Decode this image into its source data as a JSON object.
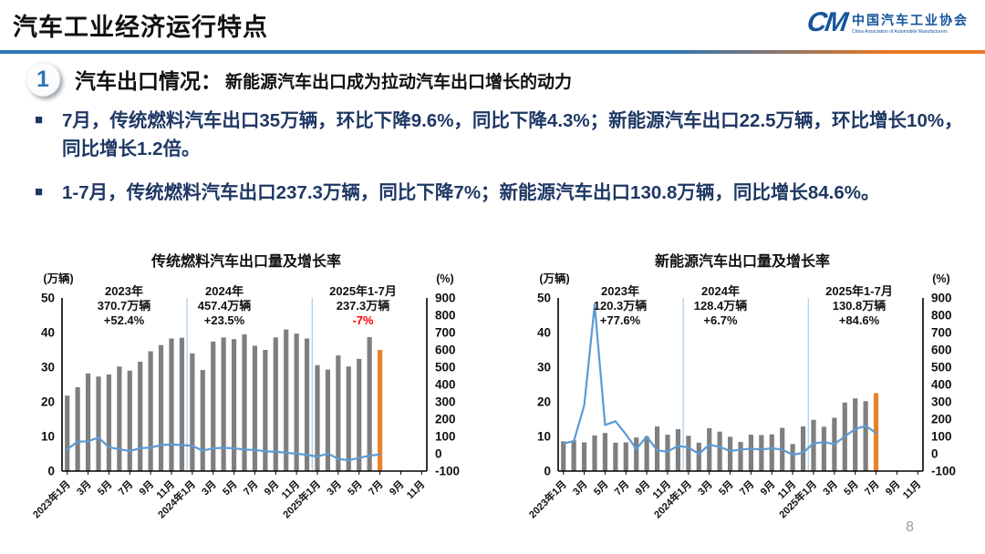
{
  "header": {
    "title": "汽车工业经济运行特点",
    "logo": {
      "mark": "CM",
      "name_cn": "中国汽车工业协会",
      "name_en": "China Association of Automobile Manufacturers"
    }
  },
  "section": {
    "number": "1",
    "heading": "汽车出口情况：",
    "subheading": "新能源汽车出口成为拉动汽车出口增长的动力"
  },
  "bullets": [
    "7月，传统燃料汽车出口35万辆，环比下降9.6%，同比下降4.3%；新能源汽车出口22.5万辆，环比增长10%，同比增长1.2倍。",
    "1-7月，传统燃料汽车出口237.3万辆，同比下降7%；新能源汽车出口130.8万辆，同比增长84.6%。"
  ],
  "page_number": "8",
  "colors": {
    "bar": "#7F7F7F",
    "bar_highlight": "#E8832C",
    "line": "#5B9BD5",
    "separator": "#A9CCE8",
    "axis": "#000000",
    "annotation_red": "#FF0000",
    "text_navy": "#1F3864",
    "rule_blue": "#2E74B5",
    "rule_orange": "#E87722",
    "logo_blue": "#15549C"
  },
  "chart_data": [
    {
      "type": "bar",
      "title": "传统燃料汽车出口量及增长率",
      "left_axis_label": "(万辆)",
      "right_axis_label": "(%)",
      "left_axis_ticks": [
        0,
        10,
        20,
        30,
        40,
        50
      ],
      "left_axis_range": [
        0,
        50
      ],
      "right_axis_ticks": [
        -100,
        0,
        100,
        200,
        300,
        400,
        500,
        600,
        700,
        800,
        900
      ],
      "right_axis_range": [
        -100,
        900
      ],
      "grid": false,
      "legend": "none",
      "categories": [
        "2023-01",
        "2023-02",
        "2023-03",
        "2023-04",
        "2023-05",
        "2023-06",
        "2023-07",
        "2023-08",
        "2023-09",
        "2023-10",
        "2023-11",
        "2023-12",
        "2024-01",
        "2024-02",
        "2024-03",
        "2024-04",
        "2024-05",
        "2024-06",
        "2024-07",
        "2024-08",
        "2024-09",
        "2024-10",
        "2024-11",
        "2024-12",
        "2025-01",
        "2025-02",
        "2025-03",
        "2025-04",
        "2025-05",
        "2025-06",
        "2025-07",
        "2025-08",
        "2025-09",
        "2025-10",
        "2025-11"
      ],
      "x_tick_labels": [
        "2023年1月",
        "3月",
        "5月",
        "7月",
        "9月",
        "11月",
        "2024年1月",
        "3月",
        "5月",
        "7月",
        "9月",
        "11月",
        "2025年1月",
        "3月",
        "5月",
        "7月",
        "9月",
        "11月"
      ],
      "bar_values_wan": [
        21.8,
        24.2,
        28.2,
        27.3,
        27.9,
        30.2,
        29.0,
        31.6,
        34.6,
        36.4,
        38.3,
        38.5,
        34.0,
        29.2,
        37.4,
        38.6,
        38.1,
        39.5,
        36.2,
        35.0,
        38.6,
        40.9,
        39.7,
        38.3,
        30.6,
        29.3,
        33.4,
        30.2,
        32.4,
        38.7,
        35.0
      ],
      "line_values_pct": [
        26,
        70,
        72,
        94,
        38,
        26,
        16,
        32,
        36,
        50,
        54,
        50,
        46,
        18,
        32,
        34,
        32,
        24,
        22,
        14,
        12,
        6,
        0,
        -6,
        -17,
        2,
        -30,
        -37,
        -24,
        -11,
        -4.3
      ],
      "highlight_bar_index": 30,
      "year_separator_indices": [
        12,
        24
      ],
      "annotations": [
        {
          "label": "2023年",
          "amount": "370.7万辆",
          "growth": "+52.4%",
          "growth_color": "#111111"
        },
        {
          "label": "2024年",
          "amount": "457.4万辆",
          "growth": "+23.5%",
          "growth_color": "#111111"
        },
        {
          "label": "2025年1-7月",
          "amount": "237.3万辆",
          "growth": "-7%",
          "growth_color": "#FF0000"
        }
      ]
    },
    {
      "type": "bar",
      "title": "新能源汽车出口量及增长率",
      "left_axis_label": "(万辆)",
      "right_axis_label": "(%)",
      "left_axis_ticks": [
        0,
        10,
        20,
        30,
        40,
        50
      ],
      "left_axis_range": [
        0,
        50
      ],
      "right_axis_ticks": [
        -100,
        0,
        100,
        200,
        300,
        400,
        500,
        600,
        700,
        800,
        900
      ],
      "right_axis_range": [
        -100,
        900
      ],
      "grid": false,
      "legend": "none",
      "categories": [
        "2023-01",
        "2023-02",
        "2023-03",
        "2023-04",
        "2023-05",
        "2023-06",
        "2023-07",
        "2023-08",
        "2023-09",
        "2023-10",
        "2023-11",
        "2023-12",
        "2024-01",
        "2024-02",
        "2024-03",
        "2024-04",
        "2024-05",
        "2024-06",
        "2024-07",
        "2024-08",
        "2024-09",
        "2024-10",
        "2024-11",
        "2024-12",
        "2025-01",
        "2025-02",
        "2025-03",
        "2025-04",
        "2025-05",
        "2025-06",
        "2025-07",
        "2025-08",
        "2025-09",
        "2025-10",
        "2025-11"
      ],
      "x_tick_labels": [
        "2023年1月",
        "3月",
        "5月",
        "7月",
        "9月",
        "11月",
        "2024年1月",
        "3月",
        "5月",
        "7月",
        "9月",
        "11月",
        "2025年1月",
        "3月",
        "5月",
        "7月",
        "9月",
        "11月"
      ],
      "bar_values_wan": [
        8.6,
        8.9,
        8.3,
        10.3,
        11.0,
        8.2,
        8.3,
        9.7,
        10.0,
        12.9,
        10.5,
        12.1,
        10.2,
        8.2,
        12.4,
        11.4,
        9.9,
        8.4,
        10.5,
        10.4,
        10.6,
        12.5,
        7.8,
        12.9,
        14.8,
        12.8,
        15.4,
        19.8,
        21.0,
        20.2,
        22.5
      ],
      "line_values_pct": [
        60,
        72,
        280,
        860,
        166,
        188,
        112,
        28,
        100,
        20,
        12,
        46,
        36,
        0,
        52,
        40,
        16,
        24,
        30,
        24,
        32,
        24,
        -6,
        6,
        60,
        68,
        55,
        100,
        143,
        161,
        120
      ],
      "highlight_bar_index": 30,
      "year_separator_indices": [
        12,
        24
      ],
      "annotations": [
        {
          "label": "2023年",
          "amount": "120.3万辆",
          "growth": "+77.6%",
          "growth_color": "#111111"
        },
        {
          "label": "2024年",
          "amount": "128.4万辆",
          "growth": "+6.7%",
          "growth_color": "#111111"
        },
        {
          "label": "2025年1-7月",
          "amount": "130.8万辆",
          "growth": "+84.6%",
          "growth_color": "#111111"
        }
      ]
    }
  ]
}
